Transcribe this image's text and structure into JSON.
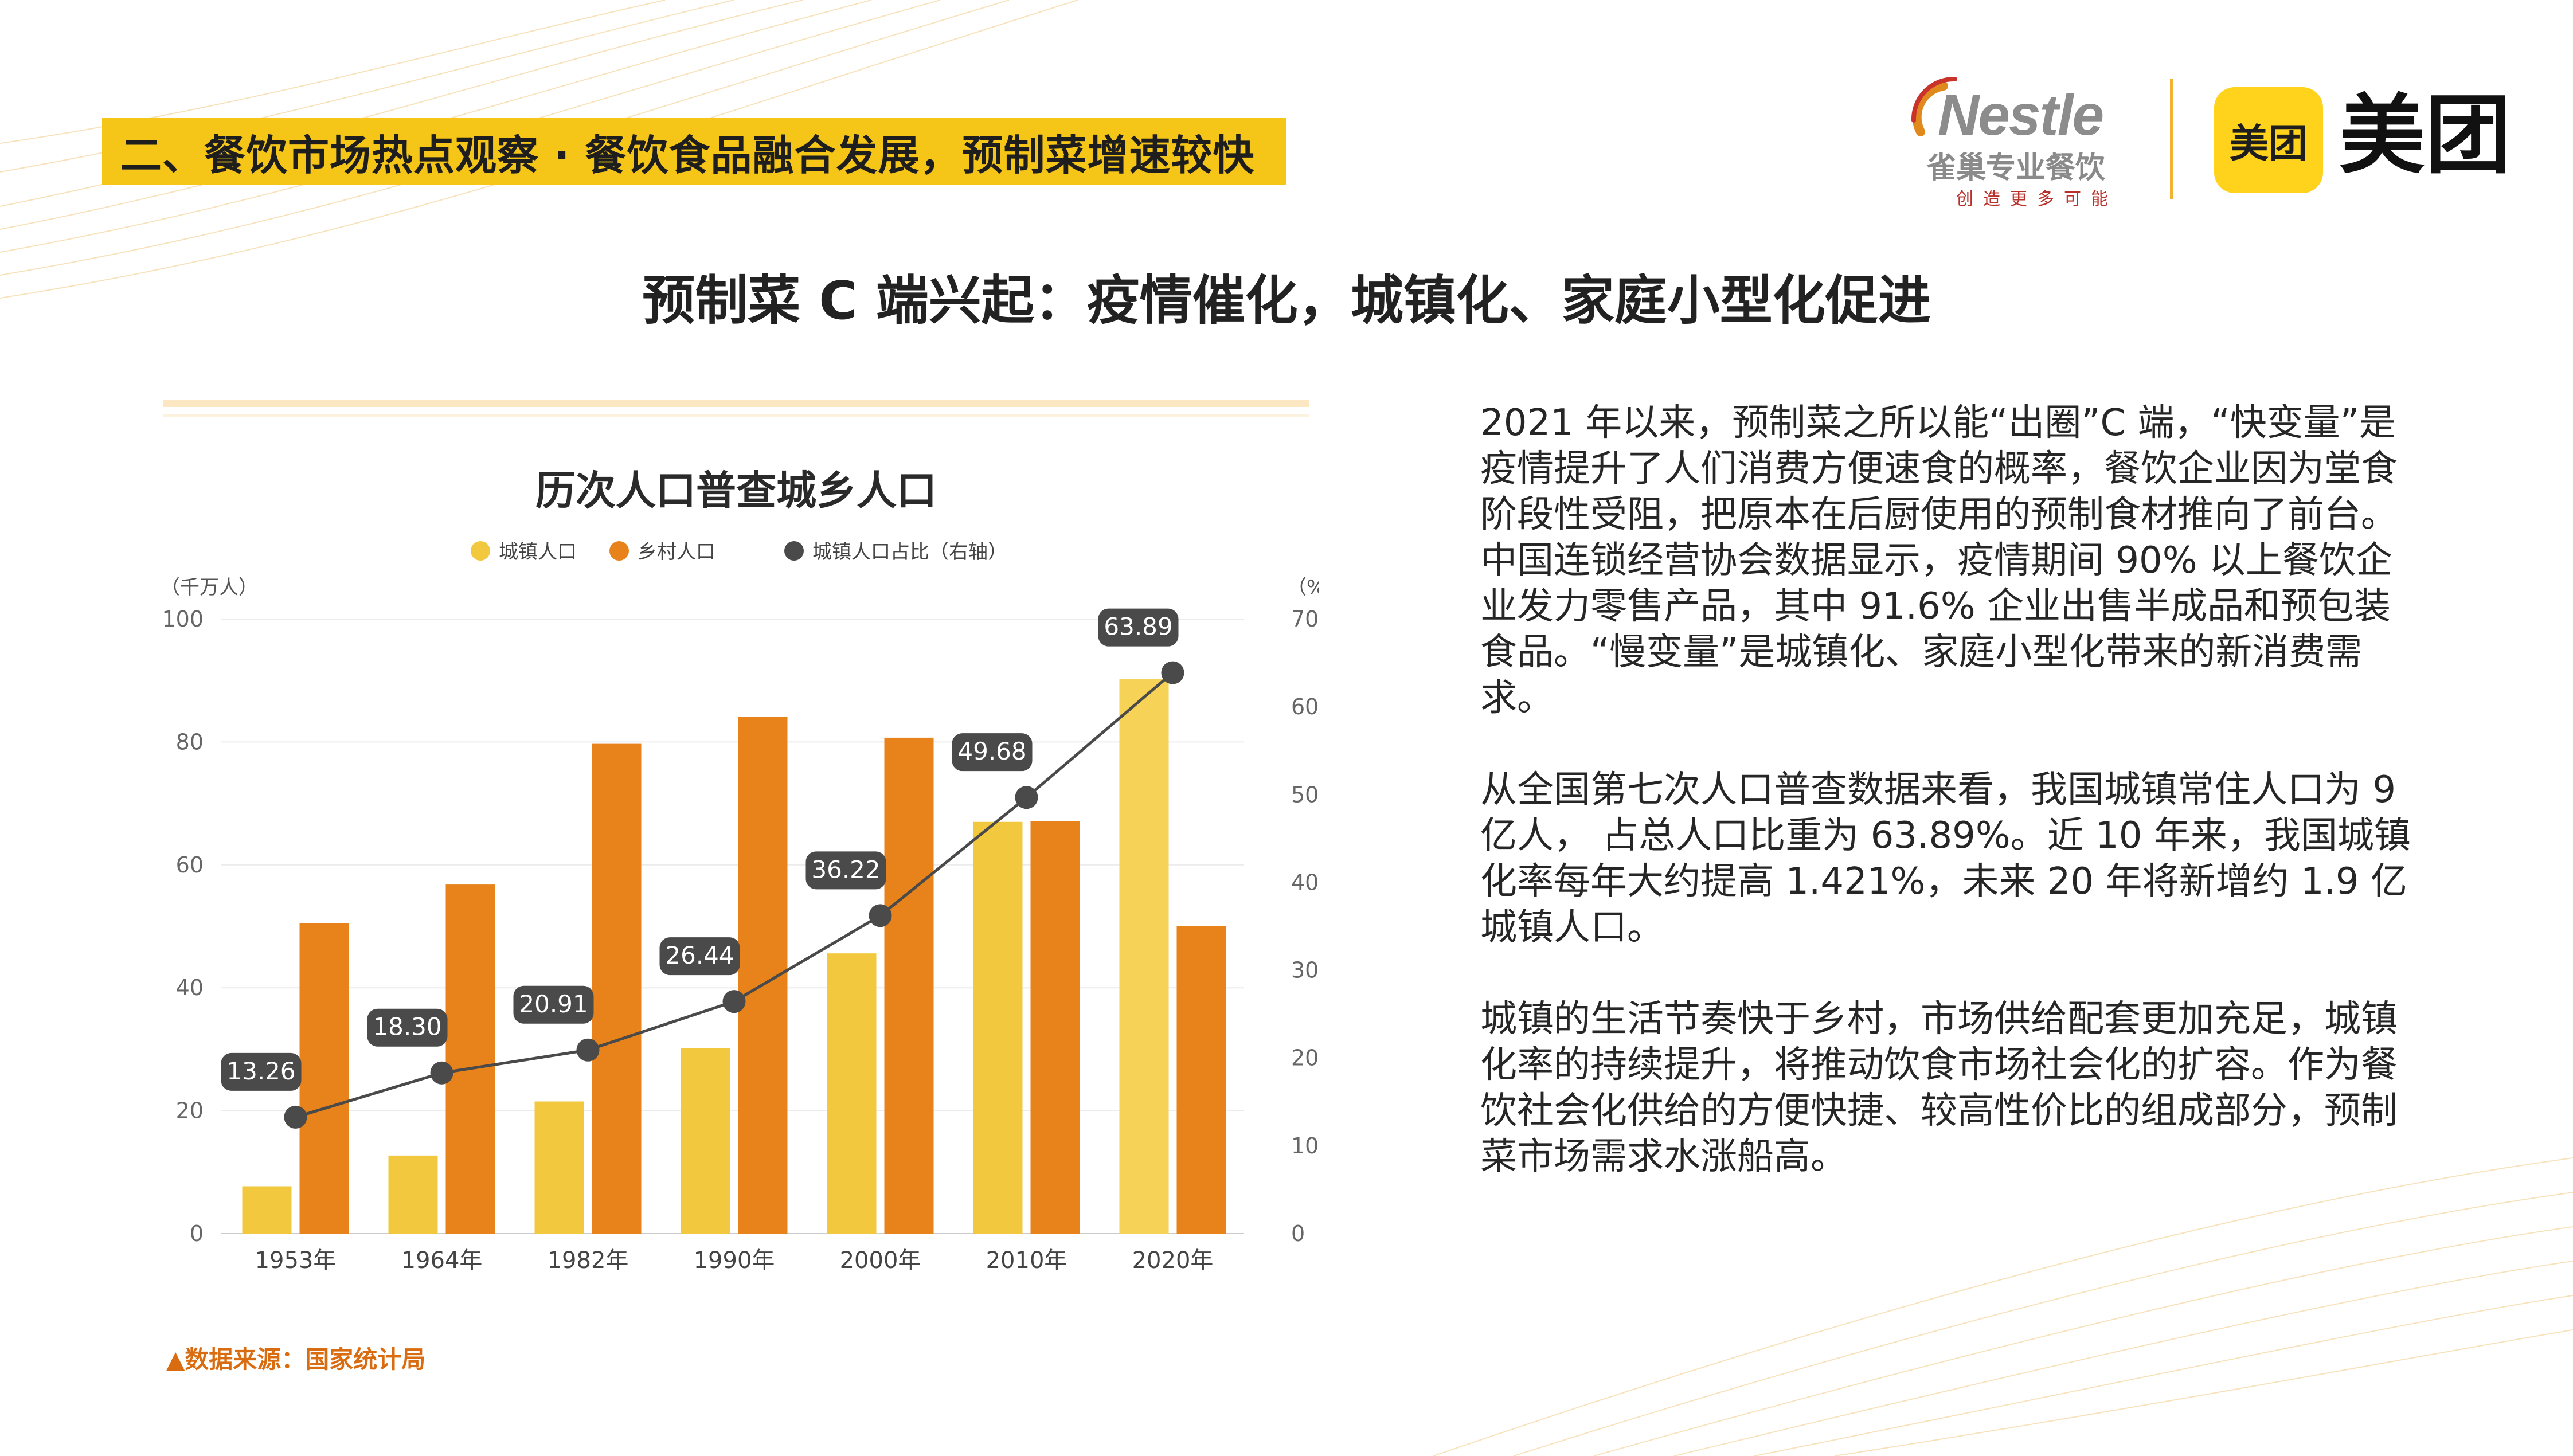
{
  "header": {
    "section_title": "二、餐饮市场热点观察 · 餐饮食品融合发展，预制菜增速较快",
    "main_title": "预制菜 C 端兴起：疫情催化，城镇化、家庭小型化促进"
  },
  "logos": {
    "nestle_wordmark": "Nestle",
    "nestle_cn": "雀巢专业餐饮",
    "nestle_tagline": "创造更多可能",
    "meituan_badge": "美团",
    "meituan_wordmark": "美团"
  },
  "chart_data": {
    "type": "bar",
    "title": "历次人口普查城乡人口",
    "categories": [
      "1953年",
      "1964年",
      "1982年",
      "1990年",
      "2000年",
      "2010年",
      "2020年"
    ],
    "series": [
      {
        "name": "城镇人口",
        "type": "bar",
        "axis": "left",
        "values": [
          7.7,
          12.7,
          21.5,
          30.2,
          45.6,
          67.0,
          90.2
        ]
      },
      {
        "name": "乡村人口",
        "type": "bar",
        "axis": "left",
        "values": [
          50.5,
          56.8,
          79.7,
          84.1,
          80.7,
          67.1,
          50.0
        ]
      },
      {
        "name": "城镇人口占比（右轴）",
        "type": "line",
        "axis": "right",
        "values": [
          13.26,
          18.3,
          20.91,
          26.44,
          36.22,
          49.68,
          63.89
        ]
      }
    ],
    "data_labels": [
      "13.26",
      "18.30",
      "20.91",
      "26.44",
      "36.22",
      "49.68",
      "63.89"
    ],
    "y_left": {
      "unit": "（千万人）",
      "range": [
        0,
        100
      ],
      "ticks": [
        "0",
        "20",
        "40",
        "60",
        "80",
        "100"
      ]
    },
    "y_right": {
      "unit": "（%）",
      "range": [
        0,
        70
      ],
      "ticks": [
        "0",
        "10",
        "20",
        "30",
        "40",
        "50",
        "60",
        "70"
      ]
    },
    "grid": true,
    "legend_position": "top",
    "colors": {
      "urban": "#f2c93e",
      "rural": "#e8821a",
      "ratio": "#4a4a4a",
      "highlight_last": "#f6d257"
    }
  },
  "source_note": "▲数据来源：国家统计局",
  "body": {
    "paragraph_1": "2021 年以来，预制菜之所以能“出圈”C 端，“快变量”是疫情提升了人们消费方便速食的概率，餐饮企业因为堂食阶段性受阻，把原本在后厨使用的预制食材推向了前台。中国连锁经营协会数据显示，疫情期间 90% 以上餐饮企业发力零售产品，其中 91.6% 企业出售半成品和预包装食品。“慢变量”是城镇化、家庭小型化带来的新消费需求。",
    "paragraph_2": "从全国第七次人口普查数据来看，我国城镇常住人口为 9 亿人， 占总人口比重为 63.89%。近 10 年来，我国城镇化率每年大约提高 1.421%，未来 20 年将新增约 1.9 亿城镇人口。",
    "paragraph_3": "城镇的生活节奏快于乡村，市场供给配套更加充足，城镇化率的持续提升，将推动饮食市场社会化的扩容。作为餐饮社会化供给的方便快捷、较高性价比的组成部分，预制菜市场需求水涨船高。"
  }
}
